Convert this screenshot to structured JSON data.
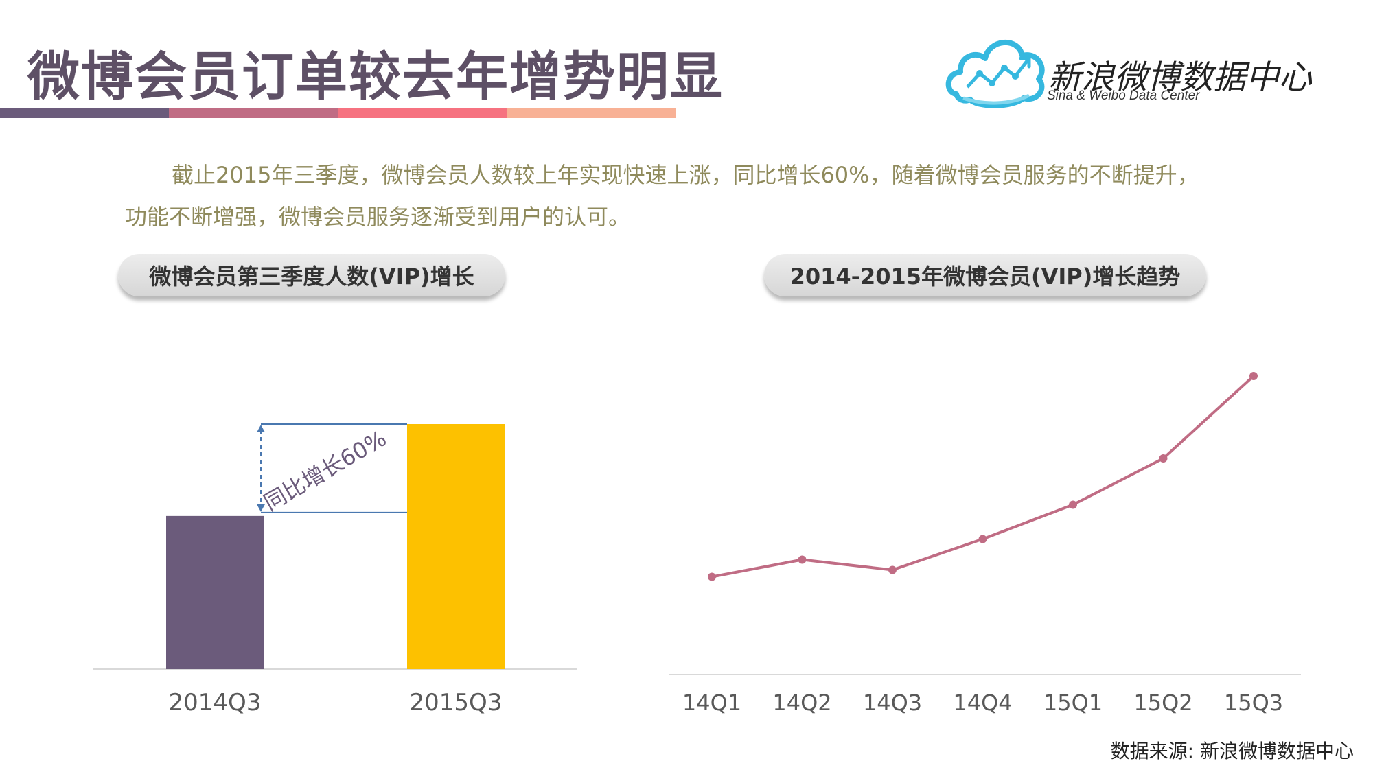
{
  "header": {
    "title": "微博会员订单较去年增势明显",
    "bar_colors": [
      "#6b5b7b",
      "#c06c84",
      "#f67280",
      "#f8b195"
    ]
  },
  "logo": {
    "name": "新浪微博数据中心",
    "subtitle": "Sina & Weibo Data Center",
    "icon": "cloud-chart-icon"
  },
  "intro": {
    "line1": "截止2015年三季度，微博会员人数较上年实现快速上涨，同比增长60%，随着微博会员服务的不断提升，",
    "line2": "功能不断增强，微博会员服务逐渐受到用户的认可。"
  },
  "chart_data": [
    {
      "type": "bar",
      "title": "微博会员第三季度人数(VIP)增长",
      "categories": [
        "2014Q3",
        "2015Q3"
      ],
      "values": [
        100,
        160
      ],
      "colors": [
        "#6b5b7b",
        "#fdc100"
      ],
      "annotation": "同比增长60%",
      "grid": false,
      "legend": "none"
    },
    {
      "type": "line",
      "title": "2014-2015年微博会员(VIP)增长趋势",
      "categories": [
        "14Q1",
        "14Q2",
        "14Q3",
        "14Q4",
        "15Q1",
        "15Q2",
        "15Q3"
      ],
      "values": [
        57,
        67,
        61,
        79,
        99,
        126,
        174
      ],
      "ylim": [
        0,
        200
      ],
      "color": "#c06c84",
      "grid": false,
      "legend": "none"
    }
  ],
  "footer": {
    "source": "数据来源: 新浪微博数据中心"
  }
}
